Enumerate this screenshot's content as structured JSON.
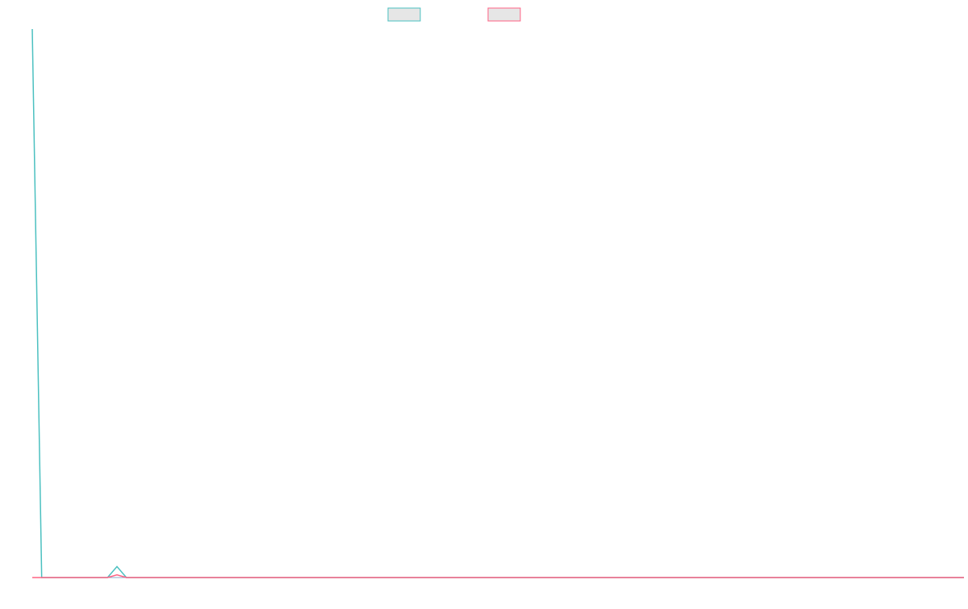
{
  "chart_data": {
    "type": "line",
    "categories": [
      null,
      null,
      null,
      null,
      null,
      null,
      null,
      null,
      null,
      null,
      null,
      null,
      null,
      null,
      null,
      null,
      null,
      null,
      null,
      null,
      null,
      null,
      null,
      null,
      null,
      null,
      null,
      null,
      null,
      null,
      null,
      null,
      null,
      null,
      null,
      null,
      null,
      null,
      null,
      null,
      null,
      null,
      null,
      null,
      null,
      null,
      null,
      null,
      null,
      null,
      null,
      null,
      null,
      null,
      null,
      null,
      null,
      null,
      null,
      null,
      null,
      null,
      null,
      null,
      null,
      null,
      null,
      null,
      null,
      null,
      null,
      null,
      null,
      null,
      null,
      null,
      null,
      null,
      null,
      null,
      null,
      null,
      null,
      null,
      null,
      null,
      null,
      null,
      null,
      null,
      null,
      null,
      null,
      null,
      null,
      null,
      null,
      null,
      null,
      null
    ],
    "series": [
      {
        "color": "#4bc0c0",
        "values": [
          100,
          0,
          0,
          0,
          0,
          0,
          0,
          0,
          0,
          2,
          0,
          0,
          0,
          0,
          0,
          0,
          0,
          0,
          0,
          0,
          0,
          0,
          0,
          0,
          0,
          0,
          0,
          0,
          0,
          0,
          0,
          0,
          0,
          0,
          0,
          0,
          0,
          0,
          0,
          0,
          0,
          0,
          0,
          0,
          0,
          0,
          0,
          0,
          0,
          0,
          0,
          0,
          0,
          0,
          0,
          0,
          0,
          0,
          0,
          0,
          0,
          0,
          0,
          0,
          0,
          0,
          0,
          0,
          0,
          0,
          0,
          0,
          0,
          0,
          0,
          0,
          0,
          0,
          0,
          0,
          0,
          0,
          0,
          0,
          0,
          0,
          0,
          0,
          0,
          0,
          0,
          0,
          0,
          0,
          0,
          0,
          0,
          0,
          0,
          0
        ]
      },
      {
        "color": "#ff6384",
        "values": [
          0,
          0,
          0,
          0,
          0,
          0,
          0,
          0,
          0,
          0.5,
          0,
          0,
          0,
          0,
          0,
          0,
          0,
          0,
          0,
          0,
          0,
          0,
          0,
          0,
          0,
          0,
          0,
          0,
          0,
          0,
          0,
          0,
          0,
          0,
          0,
          0,
          0,
          0,
          0,
          0,
          0,
          0,
          0,
          0,
          0,
          0,
          0,
          0,
          0,
          0,
          0,
          0,
          0,
          0,
          0,
          0,
          0,
          0,
          0,
          0,
          0,
          0,
          0,
          0,
          0,
          0,
          0,
          0,
          0,
          0,
          0,
          0,
          0,
          0,
          0,
          0,
          0,
          0,
          0,
          0,
          0,
          0,
          0,
          0,
          0,
          0,
          0,
          0,
          0,
          0,
          0,
          0,
          0,
          0,
          0,
          0,
          0,
          0,
          0,
          0
        ]
      }
    ],
    "ylim": [
      0,
      100
    ]
  }
}
